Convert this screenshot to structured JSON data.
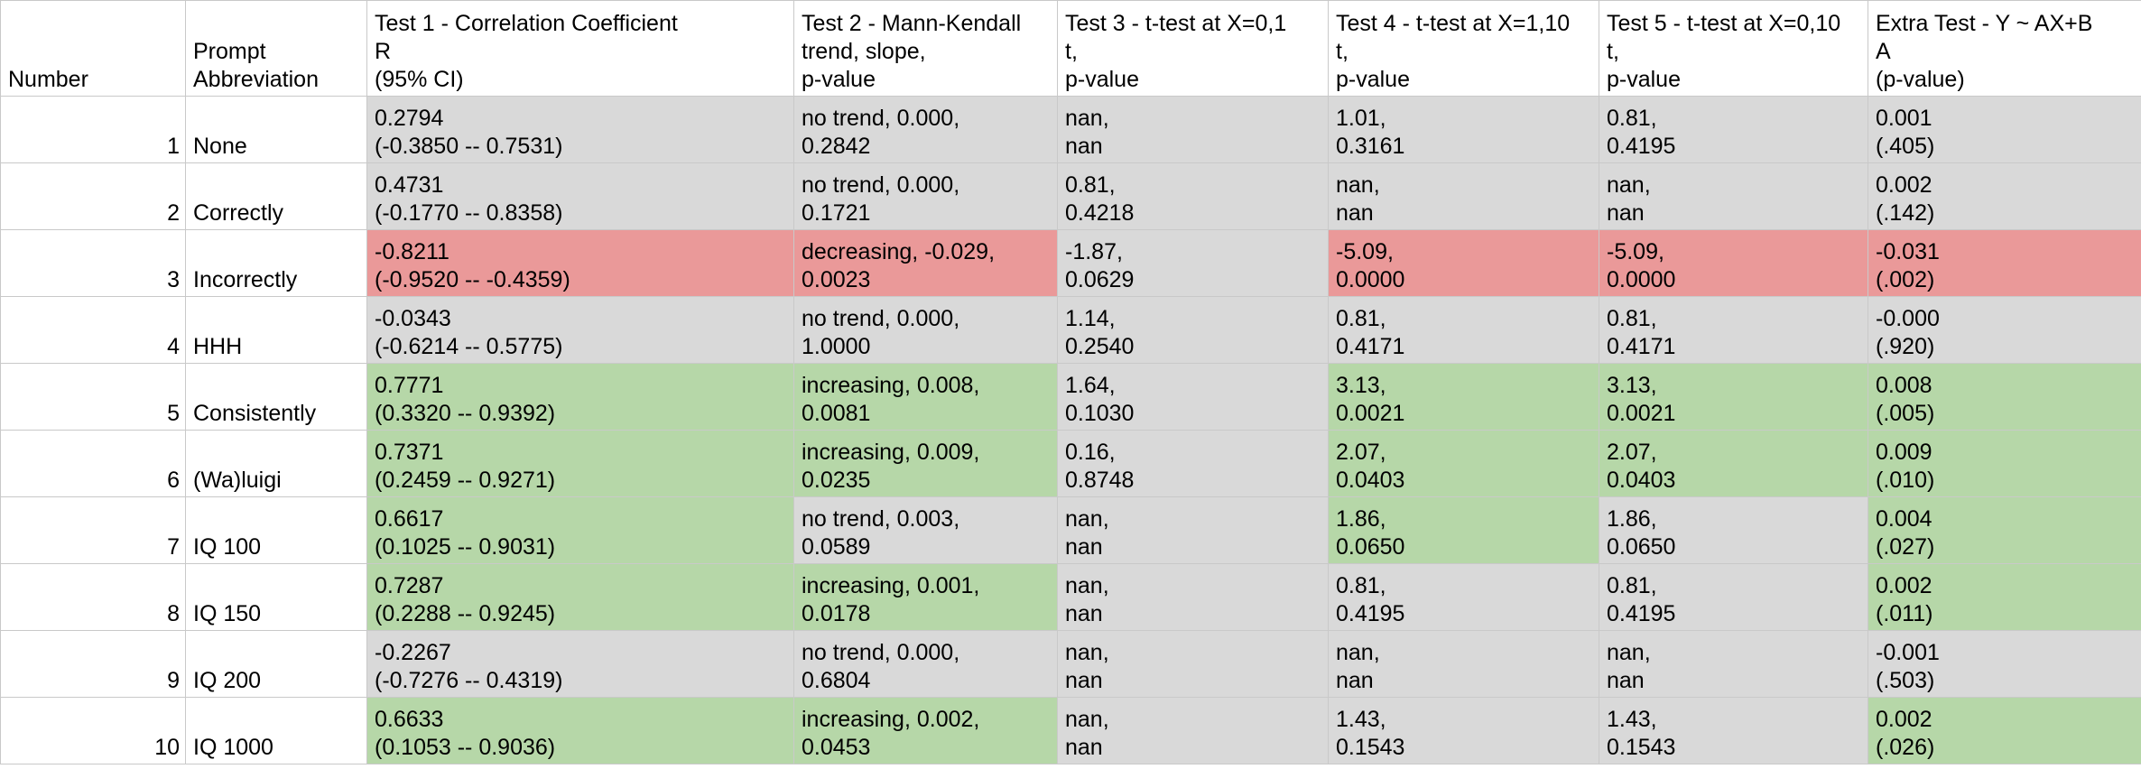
{
  "colors": {
    "grey": "#d9d9d9",
    "green": "#b6d7a8",
    "red": "#ea9999"
  },
  "headers": [
    [
      "Number"
    ],
    [
      "Prompt",
      "Abbreviation"
    ],
    [
      "Test 1 - Correlation Coefficient",
      "R",
      "(95% CI)"
    ],
    [
      "Test 2 - Mann-Kendall",
      "trend, slope,",
      "p-value"
    ],
    [
      "Test 3 - t-test at X=0,1",
      "t,",
      "p-value"
    ],
    [
      "Test 4 - t-test at X=1,10",
      "t,",
      "p-value"
    ],
    [
      "Test 5 - t-test at X=0,10",
      "t,",
      "p-value"
    ],
    [
      "Extra Test - Y ~ AX+B",
      "A",
      "(p-value)"
    ]
  ],
  "rows": [
    {
      "number": "1",
      "abbr": "None",
      "cells": [
        {
          "lines": [
            "0.2794",
            "(-0.3850 --  0.7531)"
          ],
          "color": "grey"
        },
        {
          "lines": [
            "no trend, 0.000,",
            "0.2842"
          ],
          "color": "grey"
        },
        {
          "lines": [
            "nan,",
            "nan"
          ],
          "color": "grey"
        },
        {
          "lines": [
            "1.01,",
            "0.3161"
          ],
          "color": "grey"
        },
        {
          "lines": [
            "0.81,",
            "0.4195"
          ],
          "color": "grey"
        },
        {
          "lines": [
            "0.001",
            "(.405)"
          ],
          "color": "grey"
        }
      ]
    },
    {
      "number": "2",
      "abbr": "Correctly",
      "cells": [
        {
          "lines": [
            "0.4731",
            "(-0.1770 -- 0.8358)"
          ],
          "color": "grey"
        },
        {
          "lines": [
            "no trend, 0.000,",
            "0.1721"
          ],
          "color": "grey"
        },
        {
          "lines": [
            "0.81,",
            "0.4218"
          ],
          "color": "grey"
        },
        {
          "lines": [
            "nan,",
            "nan"
          ],
          "color": "grey"
        },
        {
          "lines": [
            "nan,",
            "nan"
          ],
          "color": "grey"
        },
        {
          "lines": [
            "0.002",
            "(.142)"
          ],
          "color": "grey"
        }
      ]
    },
    {
      "number": "3",
      "abbr": "Incorrectly",
      "cells": [
        {
          "lines": [
            "-0.8211",
            "(-0.9520 -- -0.4359)"
          ],
          "color": "red"
        },
        {
          "lines": [
            "decreasing, -0.029,",
            "0.0023"
          ],
          "color": "red"
        },
        {
          "lines": [
            "-1.87,",
            "0.0629"
          ],
          "color": "grey"
        },
        {
          "lines": [
            "-5.09,",
            "0.0000"
          ],
          "color": "red"
        },
        {
          "lines": [
            "-5.09,",
            "0.0000"
          ],
          "color": "red"
        },
        {
          "lines": [
            "-0.031",
            "(.002)"
          ],
          "color": "red"
        }
      ]
    },
    {
      "number": "4",
      "abbr": "HHH",
      "cells": [
        {
          "lines": [
            "-0.0343",
            "(-0.6214 -- 0.5775)"
          ],
          "color": "grey"
        },
        {
          "lines": [
            "no trend, 0.000,",
            "1.0000"
          ],
          "color": "grey"
        },
        {
          "lines": [
            "1.14,",
            "0.2540"
          ],
          "color": "grey"
        },
        {
          "lines": [
            "0.81,",
            "0.4171"
          ],
          "color": "grey"
        },
        {
          "lines": [
            "0.81,",
            "0.4171"
          ],
          "color": "grey"
        },
        {
          "lines": [
            "-0.000",
            "(.920)"
          ],
          "color": "grey"
        }
      ]
    },
    {
      "number": "5",
      "abbr": "Consistently",
      "cells": [
        {
          "lines": [
            "0.7771",
            "(0.3320 -- 0.9392)"
          ],
          "color": "green"
        },
        {
          "lines": [
            "increasing, 0.008,",
            "0.0081"
          ],
          "color": "green"
        },
        {
          "lines": [
            "1.64,",
            "0.1030"
          ],
          "color": "grey"
        },
        {
          "lines": [
            "3.13,",
            "0.0021"
          ],
          "color": "green"
        },
        {
          "lines": [
            "3.13,",
            "0.0021"
          ],
          "color": "green"
        },
        {
          "lines": [
            "0.008",
            "(.005)"
          ],
          "color": "green"
        }
      ]
    },
    {
      "number": "6",
      "abbr": "(Wa)luigi",
      "cells": [
        {
          "lines": [
            "0.7371",
            "(0.2459 -- 0.9271)"
          ],
          "color": "green"
        },
        {
          "lines": [
            "increasing, 0.009,",
            "0.0235"
          ],
          "color": "green"
        },
        {
          "lines": [
            "0.16,",
            "0.8748"
          ],
          "color": "grey"
        },
        {
          "lines": [
            "2.07,",
            "0.0403"
          ],
          "color": "green"
        },
        {
          "lines": [
            "2.07,",
            "0.0403"
          ],
          "color": "green"
        },
        {
          "lines": [
            "0.009",
            "(.010)"
          ],
          "color": "green"
        }
      ]
    },
    {
      "number": "7",
      "abbr": "IQ 100",
      "cells": [
        {
          "lines": [
            "0.6617",
            "(0.1025 -- 0.9031)"
          ],
          "color": "green"
        },
        {
          "lines": [
            "no trend, 0.003,",
            "0.0589"
          ],
          "color": "grey"
        },
        {
          "lines": [
            "nan,",
            "nan"
          ],
          "color": "grey"
        },
        {
          "lines": [
            "1.86,",
            "0.0650"
          ],
          "color": "green"
        },
        {
          "lines": [
            "1.86,",
            "0.0650"
          ],
          "color": "grey"
        },
        {
          "lines": [
            "0.004",
            "(.027)"
          ],
          "color": "green"
        }
      ]
    },
    {
      "number": "8",
      "abbr": "IQ 150",
      "cells": [
        {
          "lines": [
            "0.7287",
            "(0.2288 -- 0.9245)"
          ],
          "color": "green"
        },
        {
          "lines": [
            "increasing, 0.001,",
            "0.0178"
          ],
          "color": "green"
        },
        {
          "lines": [
            "nan,",
            "nan"
          ],
          "color": "grey"
        },
        {
          "lines": [
            "0.81,",
            "0.4195"
          ],
          "color": "grey"
        },
        {
          "lines": [
            "0.81,",
            "0.4195"
          ],
          "color": "grey"
        },
        {
          "lines": [
            "0.002",
            "(.011)"
          ],
          "color": "green"
        }
      ]
    },
    {
      "number": "9",
      "abbr": "IQ 200",
      "cells": [
        {
          "lines": [
            "-0.2267",
            "(-0.7276 -- 0.4319)"
          ],
          "color": "grey"
        },
        {
          "lines": [
            "no trend, 0.000,",
            "0.6804"
          ],
          "color": "grey"
        },
        {
          "lines": [
            "nan,",
            "nan"
          ],
          "color": "grey"
        },
        {
          "lines": [
            "nan,",
            "nan"
          ],
          "color": "grey"
        },
        {
          "lines": [
            "nan,",
            "nan"
          ],
          "color": "grey"
        },
        {
          "lines": [
            "-0.001",
            "(.503)"
          ],
          "color": "grey"
        }
      ]
    },
    {
      "number": "10",
      "abbr": "IQ 1000",
      "cells": [
        {
          "lines": [
            "0.6633",
            "(0.1053 -- 0.9036)"
          ],
          "color": "green"
        },
        {
          "lines": [
            "increasing, 0.002,",
            "0.0453"
          ],
          "color": "green"
        },
        {
          "lines": [
            "nan,",
            "nan"
          ],
          "color": "grey"
        },
        {
          "lines": [
            "1.43,",
            "0.1543"
          ],
          "color": "grey"
        },
        {
          "lines": [
            "1.43,",
            "0.1543"
          ],
          "color": "grey"
        },
        {
          "lines": [
            "0.002",
            "(.026)"
          ],
          "color": "green"
        }
      ]
    }
  ]
}
